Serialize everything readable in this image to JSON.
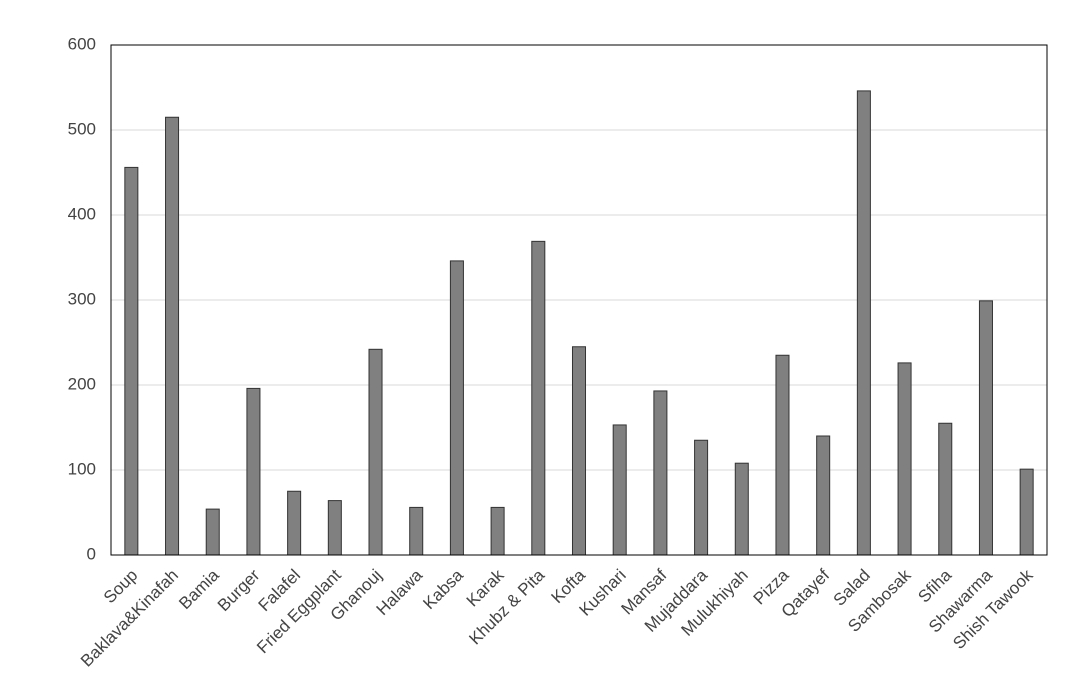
{
  "chart_data": {
    "type": "bar",
    "categories": [
      "Soup",
      "Baklava&Kinafah",
      "Bamia",
      "Burger",
      "Falafel",
      "Fried Eggplant",
      "Ghanouj",
      "Halawa",
      "Kabsa",
      "Karak",
      "Khubz & Pita",
      "Kofta",
      "Kushari",
      "Mansaf",
      "Mujaddara",
      "Mulukhiyah",
      "Pizza",
      "Qatayef",
      "Salad",
      "Sambosak",
      "Sfiha",
      "Shawarma",
      "Shish Tawook"
    ],
    "values": [
      456,
      515,
      54,
      196,
      75,
      64,
      242,
      56,
      346,
      56,
      369,
      245,
      153,
      193,
      135,
      108,
      235,
      140,
      546,
      226,
      155,
      299,
      101
    ],
    "color": "#808080",
    "ylim": [
      0,
      600
    ],
    "yticks": [
      0,
      100,
      200,
      300,
      400,
      500,
      600
    ],
    "grid": true
  }
}
